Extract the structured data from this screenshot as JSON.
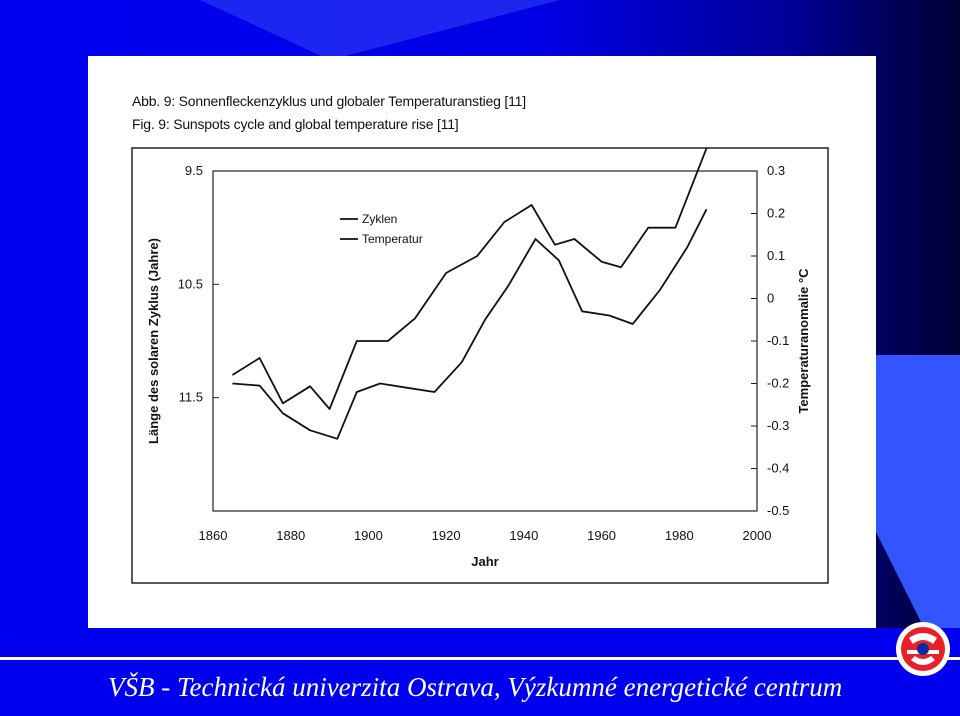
{
  "slide": {
    "footer": "VŠB - Technická univerzita Ostrava, Výzkumné energetické centrum"
  },
  "logo": {
    "icon": "university-logo-icon"
  },
  "figure": {
    "caption_de": "Abb. 9:  Sonnenfleckenzyklus und globaler Temperaturanstieg [11]",
    "caption_en": "Fig. 9:  Sunspots cycle and global temperature rise [11]"
  },
  "chart_data": {
    "type": "line",
    "xlabel": "Jahr",
    "ylabel_left": "Länge des solaren Zyklus (Jahre)",
    "ylabel_right": "Temperaturanomalie °C",
    "x_ticks": [
      "1860",
      "1880",
      "1900",
      "1920",
      "1940",
      "1960",
      "1980",
      "2000"
    ],
    "y_left_ticks": [
      "9.5",
      "10.5",
      "11.5"
    ],
    "y_right_ticks": [
      "0.3",
      "0.2",
      "0.1",
      "0",
      "-0.1",
      "-0.2",
      "-0.3",
      "-0.4",
      "-0.5"
    ],
    "xlim": [
      1860,
      2000
    ],
    "y_left_lim": [
      9.5,
      12.5
    ],
    "y_left_inverted": true,
    "y_right_lim": [
      -0.5,
      0.3
    ],
    "legend_position": "top-left",
    "colors": {
      "line": "#111111"
    },
    "series": [
      {
        "name": "Zyklen",
        "axis": "left",
        "x": [
          1865,
          1872,
          1878,
          1885,
          1890,
          1897,
          1905,
          1912,
          1920,
          1928,
          1935,
          1942,
          1948,
          1953,
          1960,
          1965,
          1972,
          1979,
          1987
        ],
        "y": [
          11.3,
          11.15,
          11.55,
          11.4,
          11.6,
          11.0,
          11.0,
          10.8,
          10.4,
          10.25,
          9.95,
          9.8,
          10.15,
          10.1,
          10.3,
          10.35,
          10.0,
          10.0,
          9.3
        ]
      },
      {
        "name": "Temperatur",
        "axis": "right",
        "x": [
          1865,
          1872,
          1878,
          1885,
          1892,
          1897,
          1903,
          1910,
          1917,
          1924,
          1930,
          1936,
          1943,
          1949,
          1955,
          1962,
          1968,
          1975,
          1982,
          1987
        ],
        "y": [
          -0.2,
          -0.205,
          -0.27,
          -0.31,
          -0.33,
          -0.22,
          -0.2,
          -0.21,
          -0.22,
          -0.15,
          -0.05,
          0.03,
          0.14,
          0.09,
          -0.03,
          -0.04,
          -0.06,
          0.02,
          0.12,
          0.21
        ]
      }
    ]
  }
}
